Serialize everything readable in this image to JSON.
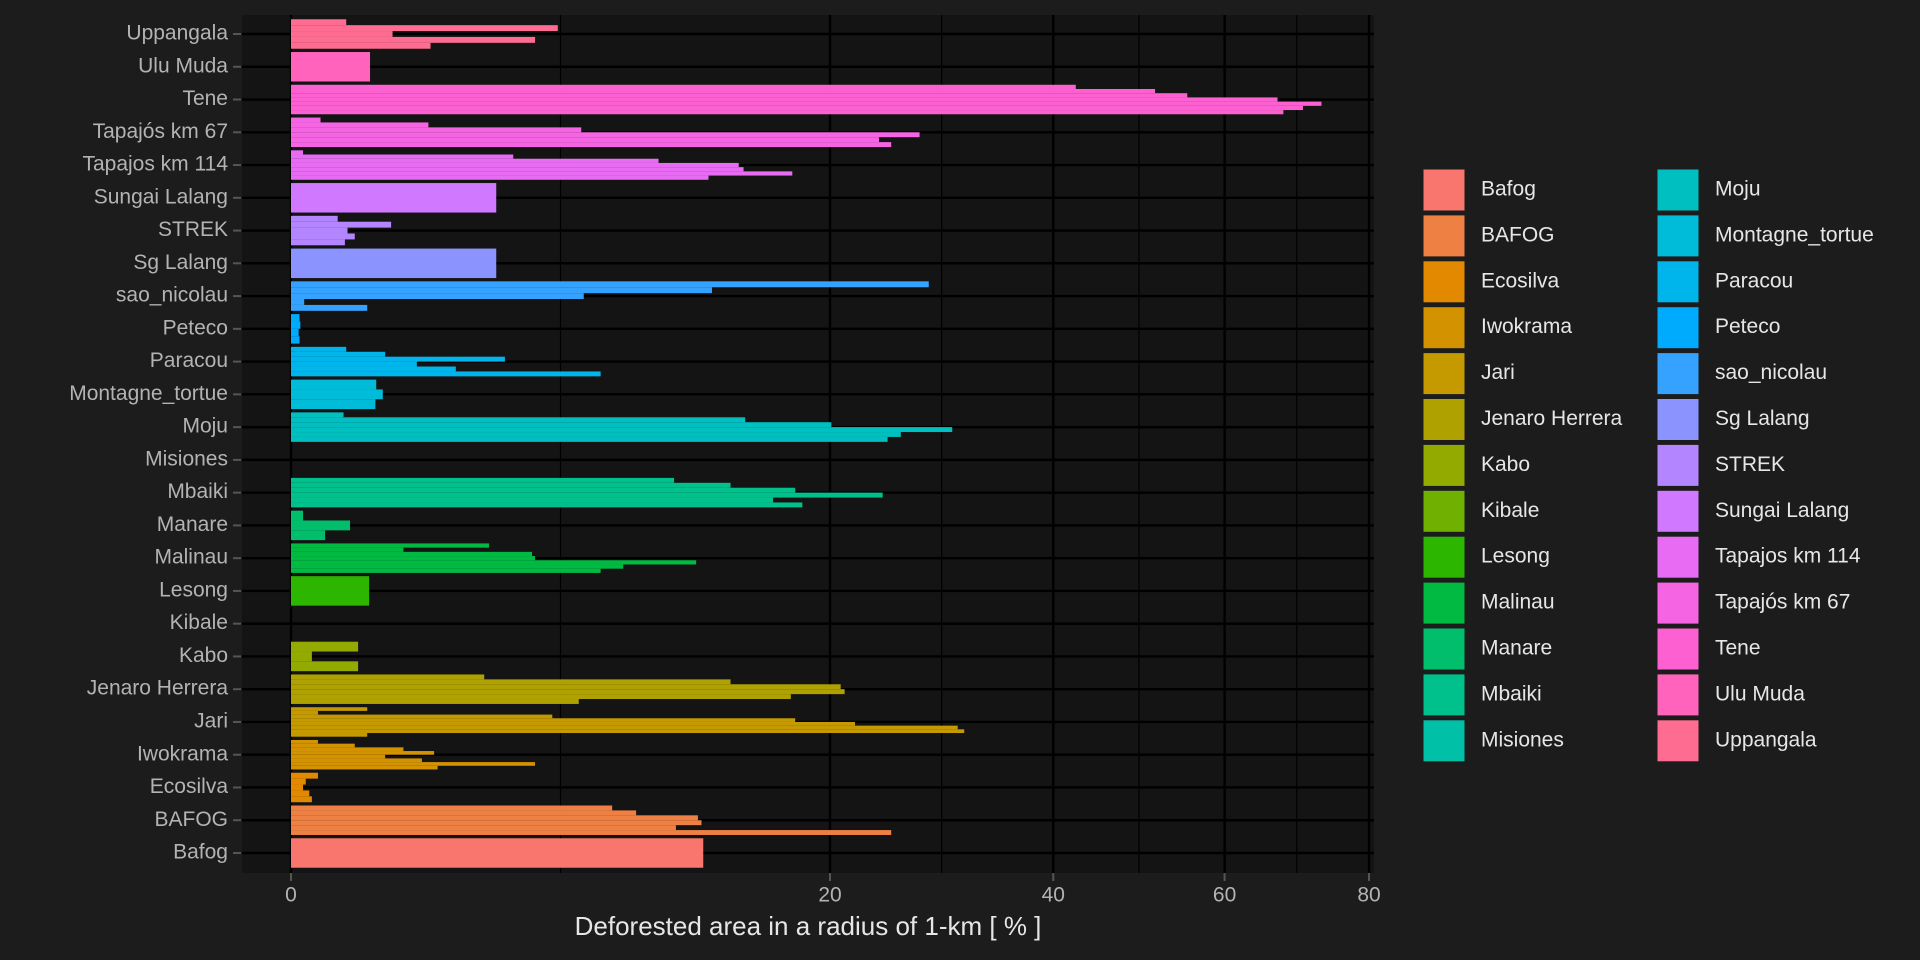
{
  "chart_data": {
    "type": "bar",
    "orientation": "horizontal",
    "xscale": "sqrt",
    "xlabel": "Deforested area in a radius of 1-km [ % ]",
    "xlim": [
      0,
      80
    ],
    "xticks": [
      0,
      20,
      40,
      60,
      80
    ],
    "grid": true,
    "legend": "right",
    "series": [
      {
        "name": "Bafog",
        "color": "#F8766D",
        "values": [
          11.7
        ]
      },
      {
        "name": "BAFOG",
        "color": "#EE8044",
        "values": [
          24.8,
          10.2,
          11.6,
          11.4,
          8.2,
          7.1
        ]
      },
      {
        "name": "Ecosilva",
        "color": "#E38900",
        "values": [
          0.03,
          0.023,
          0.01,
          0.015,
          0.05
        ]
      },
      {
        "name": "Iwokrama",
        "color": "#D39200",
        "values": [
          1.48,
          4.1,
          1.18,
          0.61,
          1.41,
          0.87,
          0.28,
          0.05
        ]
      },
      {
        "name": "Jari",
        "color": "#C49A00",
        "values": [
          0.4,
          31.2,
          30.6,
          21.9,
          17.5,
          4.7,
          0.05,
          0.4
        ]
      },
      {
        "name": "Jenaro Herrera",
        "color": "#AFA200",
        "values": [
          5.7,
          17.2,
          21.1,
          20.8,
          13.3,
          2.57
        ]
      },
      {
        "name": "Kabo",
        "color": "#93AA00",
        "values": [
          0.31,
          0.03,
          0.31
        ]
      },
      {
        "name": "Kibale",
        "color": "#6FB000",
        "values": []
      },
      {
        "name": "Lesong",
        "color": "#2DB600",
        "values": [
          0.42
        ]
      },
      {
        "name": "Malinau",
        "color": "#00BA42",
        "values": [
          6.6,
          7.6,
          11.3,
          4.1,
          4.0,
          0.87,
          2.7
        ]
      },
      {
        "name": "Manare",
        "color": "#00BE6C",
        "values": [
          0.08,
          0.24,
          0.01
        ]
      },
      {
        "name": "Mbaiki",
        "color": "#00C08B",
        "values": [
          18.0,
          16.0,
          24.1,
          17.5,
          13.3,
          10.1
        ]
      },
      {
        "name": "Misiones",
        "color": "#00C1A7",
        "values": []
      },
      {
        "name": "Moju",
        "color": "#00BFC0",
        "values": [
          24.5,
          25.6,
          30.1,
          20.1,
          14.2,
          0.19
        ]
      },
      {
        "name": "Montagne_tortue",
        "color": "#00BCD8",
        "values": [
          0.49,
          0.58,
          0.5
        ]
      },
      {
        "name": "Paracou",
        "color": "#00B5EB",
        "values": [
          6.6,
          1.87,
          1.09,
          3.15,
          0.61,
          0.21
        ]
      },
      {
        "name": "Peteco",
        "color": "#00ABFD",
        "values": [
          0.005,
          0.004,
          0.006,
          0.005
        ]
      },
      {
        "name": "sao_nicolau",
        "color": "#35A2FF",
        "values": [
          0.4,
          0.012,
          5.9,
          12.2,
          28.0
        ]
      },
      {
        "name": "Sg Lalang",
        "color": "#8B93FF",
        "values": [
          2.9
        ]
      },
      {
        "name": "STREK",
        "color": "#B385FF",
        "values": [
          0.2,
          0.28,
          0.22,
          0.69,
          0.15
        ]
      },
      {
        "name": "Sungai Lalang",
        "color": "#D078FF",
        "values": [
          2.9
        ]
      },
      {
        "name": "Tapajos km 114",
        "color": "#E76BF3",
        "values": [
          12.0,
          17.3,
          14.1,
          13.8,
          9.3,
          3.4,
          0.01
        ]
      },
      {
        "name": "Tapajós km 67",
        "color": "#F564E3",
        "values": [
          24.8,
          23.8,
          27.2,
          5.8,
          1.3,
          0.06
        ]
      },
      {
        "name": "Tene",
        "color": "#FD61D1",
        "values": [
          67.8,
          70.5,
          73.1,
          67.0,
          55.3,
          51.4,
          42.4
        ]
      },
      {
        "name": "Ulu Muda",
        "color": "#FF63BC",
        "values": [
          0.43
        ]
      },
      {
        "name": "Uppangala",
        "color": "#FF6C91",
        "values": [
          1.34,
          4.1,
          0.71,
          4.9,
          0.21
        ]
      }
    ]
  }
}
